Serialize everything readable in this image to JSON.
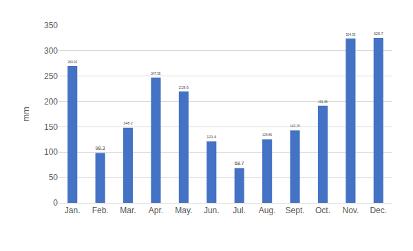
{
  "chart_data": {
    "type": "bar",
    "y_label": "mm",
    "categories": [
      "Jan.",
      "Feb.",
      "Mar.",
      "Apr.",
      "May.",
      "Jun.",
      "Jul.",
      "Aug.",
      "Sept.",
      "Oct.",
      "Nov.",
      "Dec."
    ],
    "values": [
      269.93,
      98.3,
      148.2,
      247.35,
      219.6,
      121.4,
      68.7,
      125.55,
      143.15,
      191.45,
      324.35,
      325.7
    ],
    "color": "#4472c4",
    "ylim": [
      0,
      350
    ],
    "yticks": [
      0,
      50,
      100,
      150,
      200,
      250,
      300,
      350
    ],
    "grid": true,
    "data_labels": true
  }
}
